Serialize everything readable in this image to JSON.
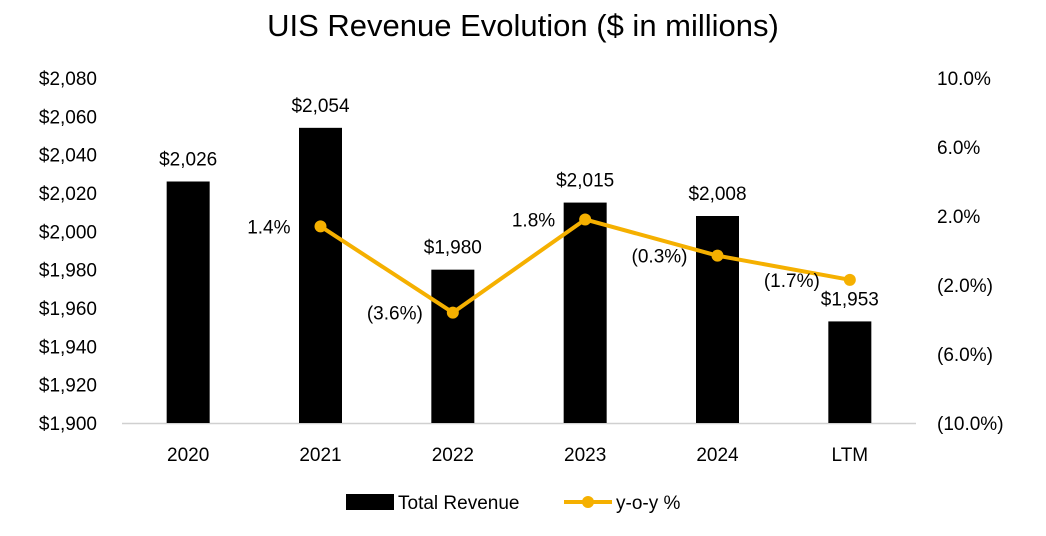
{
  "chart_data": {
    "type": "bar+line",
    "title": "UIS Revenue Evolution ($ in millions)",
    "categories": [
      "2020",
      "2021",
      "2022",
      "2023",
      "2024",
      "LTM"
    ],
    "series": [
      {
        "name": "Total Revenue",
        "type": "bar",
        "axis": "left",
        "values": [
          2026,
          2054,
          1980,
          2015,
          2008,
          1953
        ],
        "labels": [
          "$2,026",
          "$2,054",
          "$1,980",
          "$2,015",
          "$2,008",
          "$1,953"
        ],
        "color": "#000000"
      },
      {
        "name": "y-o-y %",
        "type": "line",
        "axis": "right",
        "values": [
          null,
          1.4,
          -3.6,
          1.8,
          -0.3,
          -1.7
        ],
        "labels": [
          "",
          "1.4%",
          "(3.6%)",
          "1.8%",
          "(0.3%)",
          "(1.7%)"
        ],
        "color": "#F5B000"
      }
    ],
    "y_left": {
      "ylim": [
        1900,
        2080
      ],
      "ticks": [
        1900,
        1920,
        1940,
        1960,
        1980,
        2000,
        2020,
        2040,
        2060,
        2080
      ],
      "tick_labels": [
        "$1,900",
        "$1,920",
        "$1,940",
        "$1,960",
        "$1,980",
        "$2,000",
        "$2,020",
        "$2,040",
        "$2,060",
        "$2,080"
      ]
    },
    "y_right": {
      "ylim": [
        -10,
        10
      ],
      "ticks": [
        -10,
        -6,
        -2,
        2,
        6,
        10
      ],
      "tick_labels": [
        "(10.0%)",
        "(6.0%)",
        "(2.0%)",
        "2.0%",
        "6.0%",
        "10.0%"
      ]
    },
    "grid": false,
    "legend_position": "bottom"
  }
}
